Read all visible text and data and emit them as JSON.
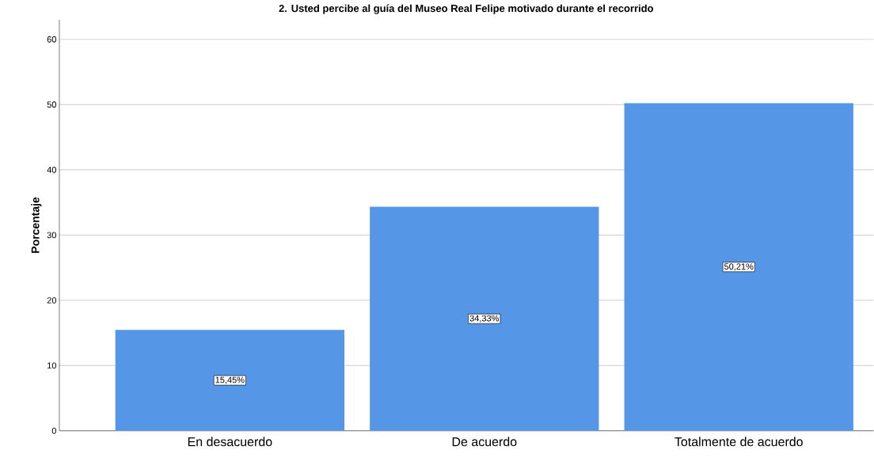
{
  "chart_data": {
    "type": "bar",
    "title": "2. Usted percibe al guía del Museo Real Felipe motivado durante el recorrido",
    "ylabel": "Porcentaje",
    "categories": [
      "En desacuerdo",
      "De acuerdo",
      "Totalmente de acuerdo"
    ],
    "values": [
      15.45,
      34.33,
      50.21
    ],
    "value_labels": [
      "15,45%",
      "34,33%",
      "50,21%"
    ],
    "color": "#5596e6",
    "ylim": [
      0,
      63
    ],
    "yticks": [
      0,
      10,
      20,
      30,
      40,
      50,
      60
    ],
    "grid": "y"
  }
}
